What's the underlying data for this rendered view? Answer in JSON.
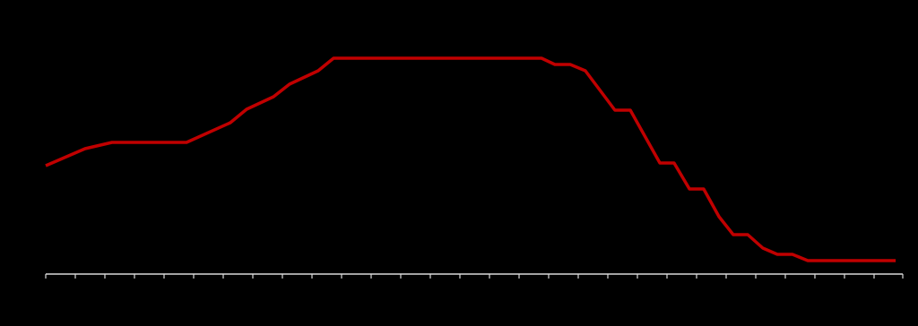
{
  "chart_data": {
    "type": "line",
    "x": [
      0,
      1.33,
      2.24,
      4.76,
      6.24,
      6.79,
      7.7,
      8.24,
      9.21,
      9.73,
      16.76,
      17.21,
      17.73,
      18.24,
      19.24,
      19.76,
      20.76,
      21.24,
      21.76,
      22.24,
      22.76,
      23.24,
      23.73,
      24.24,
      24.73,
      25.24,
      25.76,
      28.73
    ],
    "series": [
      {
        "color": "#c00000",
        "values": [
          121,
          140,
          147,
          147,
          169,
          184,
          198,
          212,
          227,
          241,
          241,
          234,
          234,
          227,
          183,
          183,
          124,
          124,
          95,
          95,
          64,
          44,
          44,
          29,
          22,
          22,
          15,
          15
        ]
      }
    ],
    "xlim": [
      0,
      29
    ],
    "xticks": [
      0,
      1,
      2,
      3,
      4,
      5,
      6,
      7,
      8,
      9,
      10,
      11,
      12,
      13,
      14,
      15,
      16,
      17,
      18,
      19,
      20,
      21,
      22,
      23,
      24,
      25,
      26,
      27,
      28,
      29
    ],
    "ylim": [
      0,
      250
    ]
  }
}
